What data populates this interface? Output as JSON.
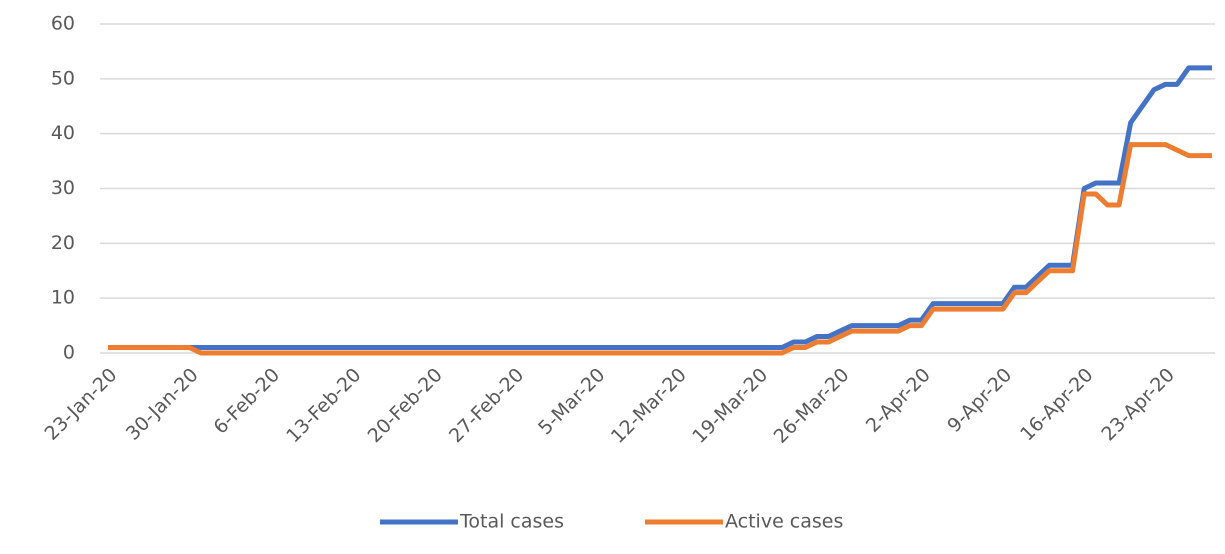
{
  "chart_data": {
    "type": "line",
    "categories": [
      "23-Jan-20",
      null,
      null,
      null,
      null,
      null,
      null,
      "30-Jan-20",
      null,
      null,
      null,
      null,
      null,
      null,
      "6-Feb-20",
      null,
      null,
      null,
      null,
      null,
      null,
      "13-Feb-20",
      null,
      null,
      null,
      null,
      null,
      null,
      "20-Feb-20",
      null,
      null,
      null,
      null,
      null,
      null,
      "27-Feb-20",
      null,
      null,
      null,
      null,
      null,
      null,
      "5-Mar-20",
      null,
      null,
      null,
      null,
      null,
      null,
      "12-Mar-20",
      null,
      null,
      null,
      null,
      null,
      null,
      "19-Mar-20",
      null,
      null,
      null,
      null,
      null,
      null,
      "26-Mar-20",
      null,
      null,
      null,
      null,
      null,
      null,
      "2-Apr-20",
      null,
      null,
      null,
      null,
      null,
      null,
      "9-Apr-20",
      null,
      null,
      null,
      null,
      null,
      null,
      "16-Apr-20",
      null,
      null,
      null,
      null,
      null,
      null,
      "23-Apr-20",
      null,
      null,
      null,
      null
    ],
    "series": [
      {
        "name": "Total cases",
        "color": "#4472c4",
        "values": [
          1,
          1,
          1,
          1,
          1,
          1,
          1,
          1,
          1,
          1,
          1,
          1,
          1,
          1,
          1,
          1,
          1,
          1,
          1,
          1,
          1,
          1,
          1,
          1,
          1,
          1,
          1,
          1,
          1,
          1,
          1,
          1,
          1,
          1,
          1,
          1,
          1,
          1,
          1,
          1,
          1,
          1,
          1,
          1,
          1,
          1,
          1,
          1,
          1,
          1,
          1,
          1,
          1,
          1,
          1,
          1,
          1,
          1,
          1,
          2,
          2,
          3,
          3,
          4,
          5,
          5,
          5,
          5,
          5,
          6,
          6,
          9,
          9,
          9,
          9,
          9,
          9,
          9,
          12,
          12,
          14,
          16,
          16,
          16,
          30,
          31,
          31,
          31,
          42,
          45,
          48,
          49,
          49,
          52,
          52,
          52
        ]
      },
      {
        "name": "Active cases",
        "color": "#ed7d31",
        "values": [
          1,
          1,
          1,
          1,
          1,
          1,
          1,
          1,
          0,
          0,
          0,
          0,
          0,
          0,
          0,
          0,
          0,
          0,
          0,
          0,
          0,
          0,
          0,
          0,
          0,
          0,
          0,
          0,
          0,
          0,
          0,
          0,
          0,
          0,
          0,
          0,
          0,
          0,
          0,
          0,
          0,
          0,
          0,
          0,
          0,
          0,
          0,
          0,
          0,
          0,
          0,
          0,
          0,
          0,
          0,
          0,
          0,
          0,
          0,
          1,
          1,
          2,
          2,
          3,
          4,
          4,
          4,
          4,
          4,
          5,
          5,
          8,
          8,
          8,
          8,
          8,
          8,
          8,
          11,
          11,
          13,
          15,
          15,
          15,
          29,
          29,
          27,
          27,
          38,
          38,
          38,
          38,
          37,
          36,
          36,
          36
        ]
      }
    ],
    "ylim": [
      0,
      60
    ],
    "yticks": [
      0,
      10,
      20,
      30,
      40,
      50,
      60
    ],
    "grid": true,
    "legend": "bottom"
  }
}
